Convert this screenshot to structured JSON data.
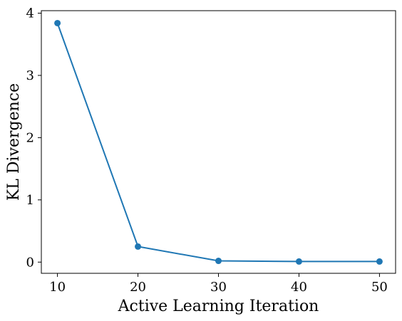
{
  "chart_data": {
    "type": "line",
    "xlabel": "Active Learning Iteration",
    "ylabel": "KL Divergence",
    "x": [
      10,
      20,
      30,
      40,
      50
    ],
    "series": [
      {
        "values": [
          3.84,
          0.25,
          0.02,
          0.01,
          0.01
        ]
      }
    ],
    "xlim": [
      8,
      52
    ],
    "ylim": [
      -0.18,
      4.04
    ],
    "xticks": [
      10,
      20,
      30,
      40,
      50
    ],
    "yticks": [
      0,
      1,
      2,
      3,
      4
    ],
    "grid": false,
    "colors": {
      "series": "#1f77b4"
    }
  }
}
